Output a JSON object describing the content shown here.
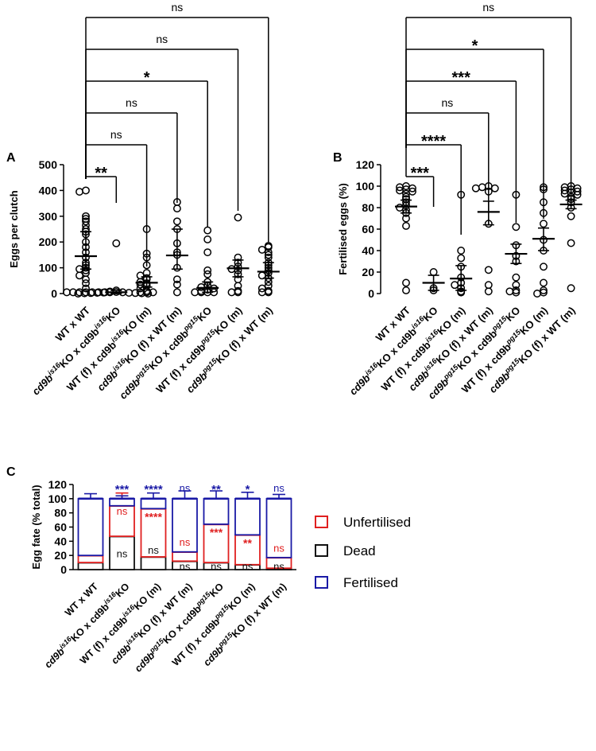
{
  "chart_data": [
    {
      "panel": "A",
      "type": "scatter",
      "ylabel": "Eggs per clutch",
      "ylim": [
        0,
        500
      ],
      "yticks": [
        0,
        100,
        200,
        300,
        400,
        500
      ],
      "categories": [
        {
          "base": "WT x WT",
          "strain": "",
          "suffix": ""
        },
        {
          "base": "cd9b",
          "strain": "is16",
          "suffix": "KO x cd9b^is16KO"
        },
        {
          "base": "WT (f) x cd9b",
          "strain": "is16",
          "suffix": "KO (m)"
        },
        {
          "base": "cd9b",
          "strain": "is16",
          "suffix": "KO (f) x WT (m)"
        },
        {
          "base": "cd9b",
          "strain": "pg15",
          "suffix": "KO x cd9b^pg15KO"
        },
        {
          "base": "WT (f) x cd9b",
          "strain": "pg15",
          "suffix": "KO (m)"
        },
        {
          "base": "cd9b",
          "strain": "pg15",
          "suffix": "KO (f) x WT (m)"
        }
      ],
      "series": [
        {
          "mean": 145,
          "err": [
            95,
            240
          ],
          "points": [
            400,
            395,
            300,
            290,
            280,
            265,
            250,
            240,
            230,
            200,
            180,
            160,
            140,
            120,
            110,
            100,
            95,
            90,
            80,
            70,
            55,
            40,
            20,
            5,
            5,
            5,
            5,
            5,
            5,
            5
          ]
        },
        {
          "mean": 5,
          "err": [
            0,
            12
          ],
          "points": [
            195,
            12,
            8,
            6,
            5,
            5,
            4,
            3,
            3,
            2,
            2,
            1,
            1,
            0,
            0
          ]
        },
        {
          "mean": 42,
          "err": [
            25,
            65
          ],
          "points": [
            250,
            155,
            140,
            110,
            80,
            70,
            60,
            55,
            45,
            40,
            35,
            30,
            20,
            10,
            5,
            5,
            5
          ]
        },
        {
          "mean": 148,
          "err": [
            95,
            250
          ],
          "points": [
            355,
            330,
            280,
            250,
            195,
            160,
            150,
            100,
            55,
            35,
            5
          ]
        },
        {
          "mean": 22,
          "err": [
            5,
            45
          ],
          "points": [
            245,
            210,
            160,
            90,
            75,
            45,
            30,
            25,
            20,
            15,
            10,
            5,
            5,
            5,
            5
          ]
        },
        {
          "mean": 98,
          "err": [
            65,
            130
          ],
          "points": [
            295,
            140,
            120,
            105,
            95,
            90,
            75,
            55,
            30,
            10,
            5,
            5
          ]
        },
        {
          "mean": 85,
          "err": [
            60,
            120
          ],
          "points": [
            185,
            180,
            170,
            160,
            150,
            140,
            120,
            110,
            100,
            90,
            80,
            70,
            60,
            45,
            30,
            20,
            10,
            5,
            5
          ]
        }
      ],
      "comparisons": [
        {
          "to": 1,
          "label": "**"
        },
        {
          "to": 2,
          "label": "ns"
        },
        {
          "to": 3,
          "label": "ns"
        },
        {
          "to": 4,
          "label": "*"
        },
        {
          "to": 5,
          "label": "ns"
        },
        {
          "to": 6,
          "label": "ns"
        }
      ]
    },
    {
      "panel": "B",
      "type": "scatter",
      "ylabel": "Fertilised eggs (%)",
      "ylim": [
        0,
        120
      ],
      "yticks": [
        0,
        20,
        40,
        60,
        80,
        100,
        120
      ],
      "categories": [
        {
          "base": "WT x WT",
          "strain": "",
          "suffix": ""
        },
        {
          "base": "cd9b",
          "strain": "is16",
          "suffix": "KO x cd9b^is16KO"
        },
        {
          "base": "WT (f) x cd9b",
          "strain": "is16",
          "suffix": "KO (m)"
        },
        {
          "base": "cd9b",
          "strain": "is16",
          "suffix": "KO (f) x WT (m)"
        },
        {
          "base": "cd9b",
          "strain": "pg15",
          "suffix": "KO x cd9b^pg15KO"
        },
        {
          "base": "WT (f) x cd9b",
          "strain": "pg15",
          "suffix": "KO (m)"
        },
        {
          "base": "cd9b",
          "strain": "pg15",
          "suffix": "KO (f) x WT (m)"
        }
      ],
      "series": [
        {
          "mean": 81,
          "err": [
            75,
            87
          ],
          "points": [
            100,
            99,
            98,
            97,
            96,
            95,
            93,
            90,
            88,
            85,
            82,
            80,
            78,
            75,
            70,
            63,
            10,
            3
          ]
        },
        {
          "mean": 10,
          "err": [
            3,
            17
          ],
          "points": [
            20,
            5,
            3
          ]
        },
        {
          "mean": 14,
          "err": [
            3,
            26
          ],
          "points": [
            92,
            40,
            33,
            25,
            15,
            10,
            8,
            5,
            2,
            1
          ]
        },
        {
          "mean": 76,
          "err": [
            64,
            86
          ],
          "points": [
            100,
            99,
            98,
            98,
            95,
            65,
            22,
            8,
            2
          ]
        },
        {
          "mean": 37,
          "err": [
            28,
            46
          ],
          "points": [
            92,
            62,
            45,
            35,
            30,
            15,
            8,
            3,
            2,
            1
          ]
        },
        {
          "mean": 51,
          "err": [
            40,
            61
          ],
          "points": [
            99,
            97,
            85,
            75,
            65,
            50,
            40,
            25,
            10,
            3,
            1,
            0
          ]
        },
        {
          "mean": 83,
          "err": [
            79,
            87
          ],
          "points": [
            100,
            99,
            98,
            97,
            96,
            95,
            94,
            93,
            92,
            90,
            88,
            85,
            80,
            72,
            47,
            5
          ]
        }
      ],
      "comparisons": [
        {
          "to": 1,
          "label": "***"
        },
        {
          "to": 2,
          "label": "****"
        },
        {
          "to": 3,
          "label": "ns"
        },
        {
          "to": 4,
          "label": "***"
        },
        {
          "to": 5,
          "label": "*"
        },
        {
          "to": 6,
          "label": "ns"
        }
      ]
    },
    {
      "panel": "C",
      "type": "bar",
      "stacked": true,
      "ylabel": "Egg fate (% total)",
      "ylim": [
        0,
        120
      ],
      "yticks": [
        0,
        20,
        40,
        60,
        80,
        100,
        120
      ],
      "legend_position": "right",
      "colors": {
        "fertilised": "#1a1aa6",
        "unfertilised": "#e02020",
        "dead": "#111111"
      },
      "categories": [
        {
          "base": "WT x WT",
          "strain": "",
          "suffix": ""
        },
        {
          "base": "cd9b",
          "strain": "is16",
          "suffix": "KO x cd9b^is16KO"
        },
        {
          "base": "WT (f) x cd9b",
          "strain": "is16",
          "suffix": "KO (m)"
        },
        {
          "base": "cd9b",
          "strain": "is16",
          "suffix": "KO (f) x WT (m)"
        },
        {
          "base": "cd9b",
          "strain": "pg15",
          "suffix": "KO x cd9b^pg15KO"
        },
        {
          "base": "WT (f) x cd9b",
          "strain": "pg15",
          "suffix": "KO (m)"
        },
        {
          "base": "cd9b",
          "strain": "pg15",
          "suffix": "KO (f) x WT (m)"
        }
      ],
      "series": [
        {
          "name": "Dead",
          "key": "dead",
          "values": [
            10,
            47,
            18,
            12,
            10,
            7,
            2
          ],
          "err": [
            17,
            71,
            28,
            20,
            20,
            14,
            3
          ]
        },
        {
          "name": "Unfertilised",
          "key": "unfertilised",
          "values": [
            10,
            43,
            68,
            13,
            54,
            42,
            15
          ],
          "err": [
            23,
            108,
            97,
            30,
            75,
            58,
            22
          ]
        },
        {
          "name": "Fertilised",
          "key": "fertilised",
          "values": [
            80,
            10,
            14,
            75,
            36,
            51,
            83
          ],
          "err": [
            107,
            104,
            108,
            111,
            111,
            109,
            106
          ]
        }
      ],
      "bar_annotations": {
        "top": [
          "",
          "***",
          "****",
          "ns",
          "**",
          "*",
          "ns"
        ],
        "unfertilised": [
          "",
          "ns",
          "****",
          "ns",
          "***",
          "**",
          "ns"
        ],
        "dead": [
          "",
          "ns",
          "ns",
          "ns",
          "ns",
          "ns",
          "ns"
        ]
      },
      "legend": [
        "Unfertilised",
        "Dead",
        "Fertilised"
      ]
    }
  ],
  "panel_labels": [
    "A",
    "B",
    "C"
  ]
}
